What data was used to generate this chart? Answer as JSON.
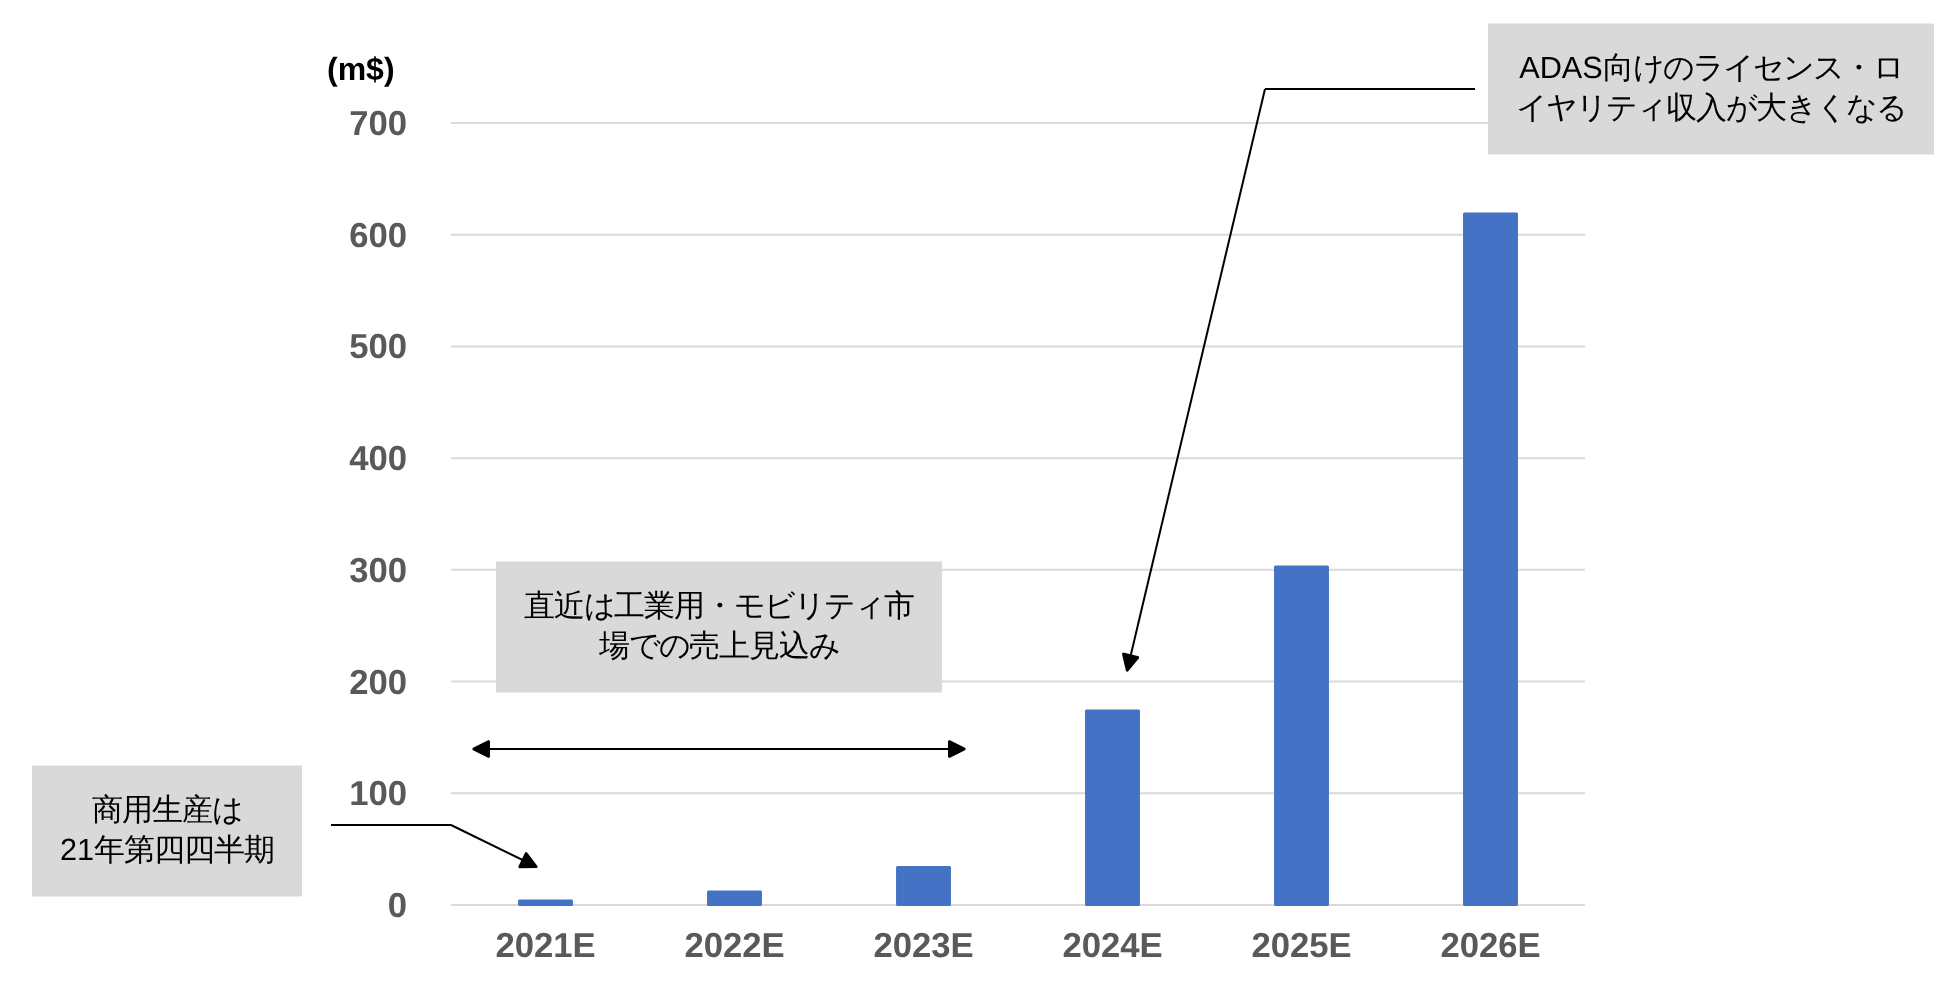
{
  "chart_data": {
    "type": "bar",
    "ylabel": "(m$)",
    "categories": [
      "2021E",
      "2022E",
      "2023E",
      "2024E",
      "2025E",
      "2026E"
    ],
    "values": [
      4,
      12,
      34,
      174,
      303,
      619
    ],
    "color": "#4472c4",
    "ylim": [
      0,
      700
    ],
    "yticks": [
      0,
      100,
      200,
      300,
      400,
      500,
      600,
      700
    ],
    "grid": "y",
    "annotations": [
      "商用生産は21年第四四半期",
      "直近は工業用・モビリティ市場での売上見込み",
      "ADAS向けのライセンス・ロイヤリティ収入が大きくなる"
    ]
  }
}
